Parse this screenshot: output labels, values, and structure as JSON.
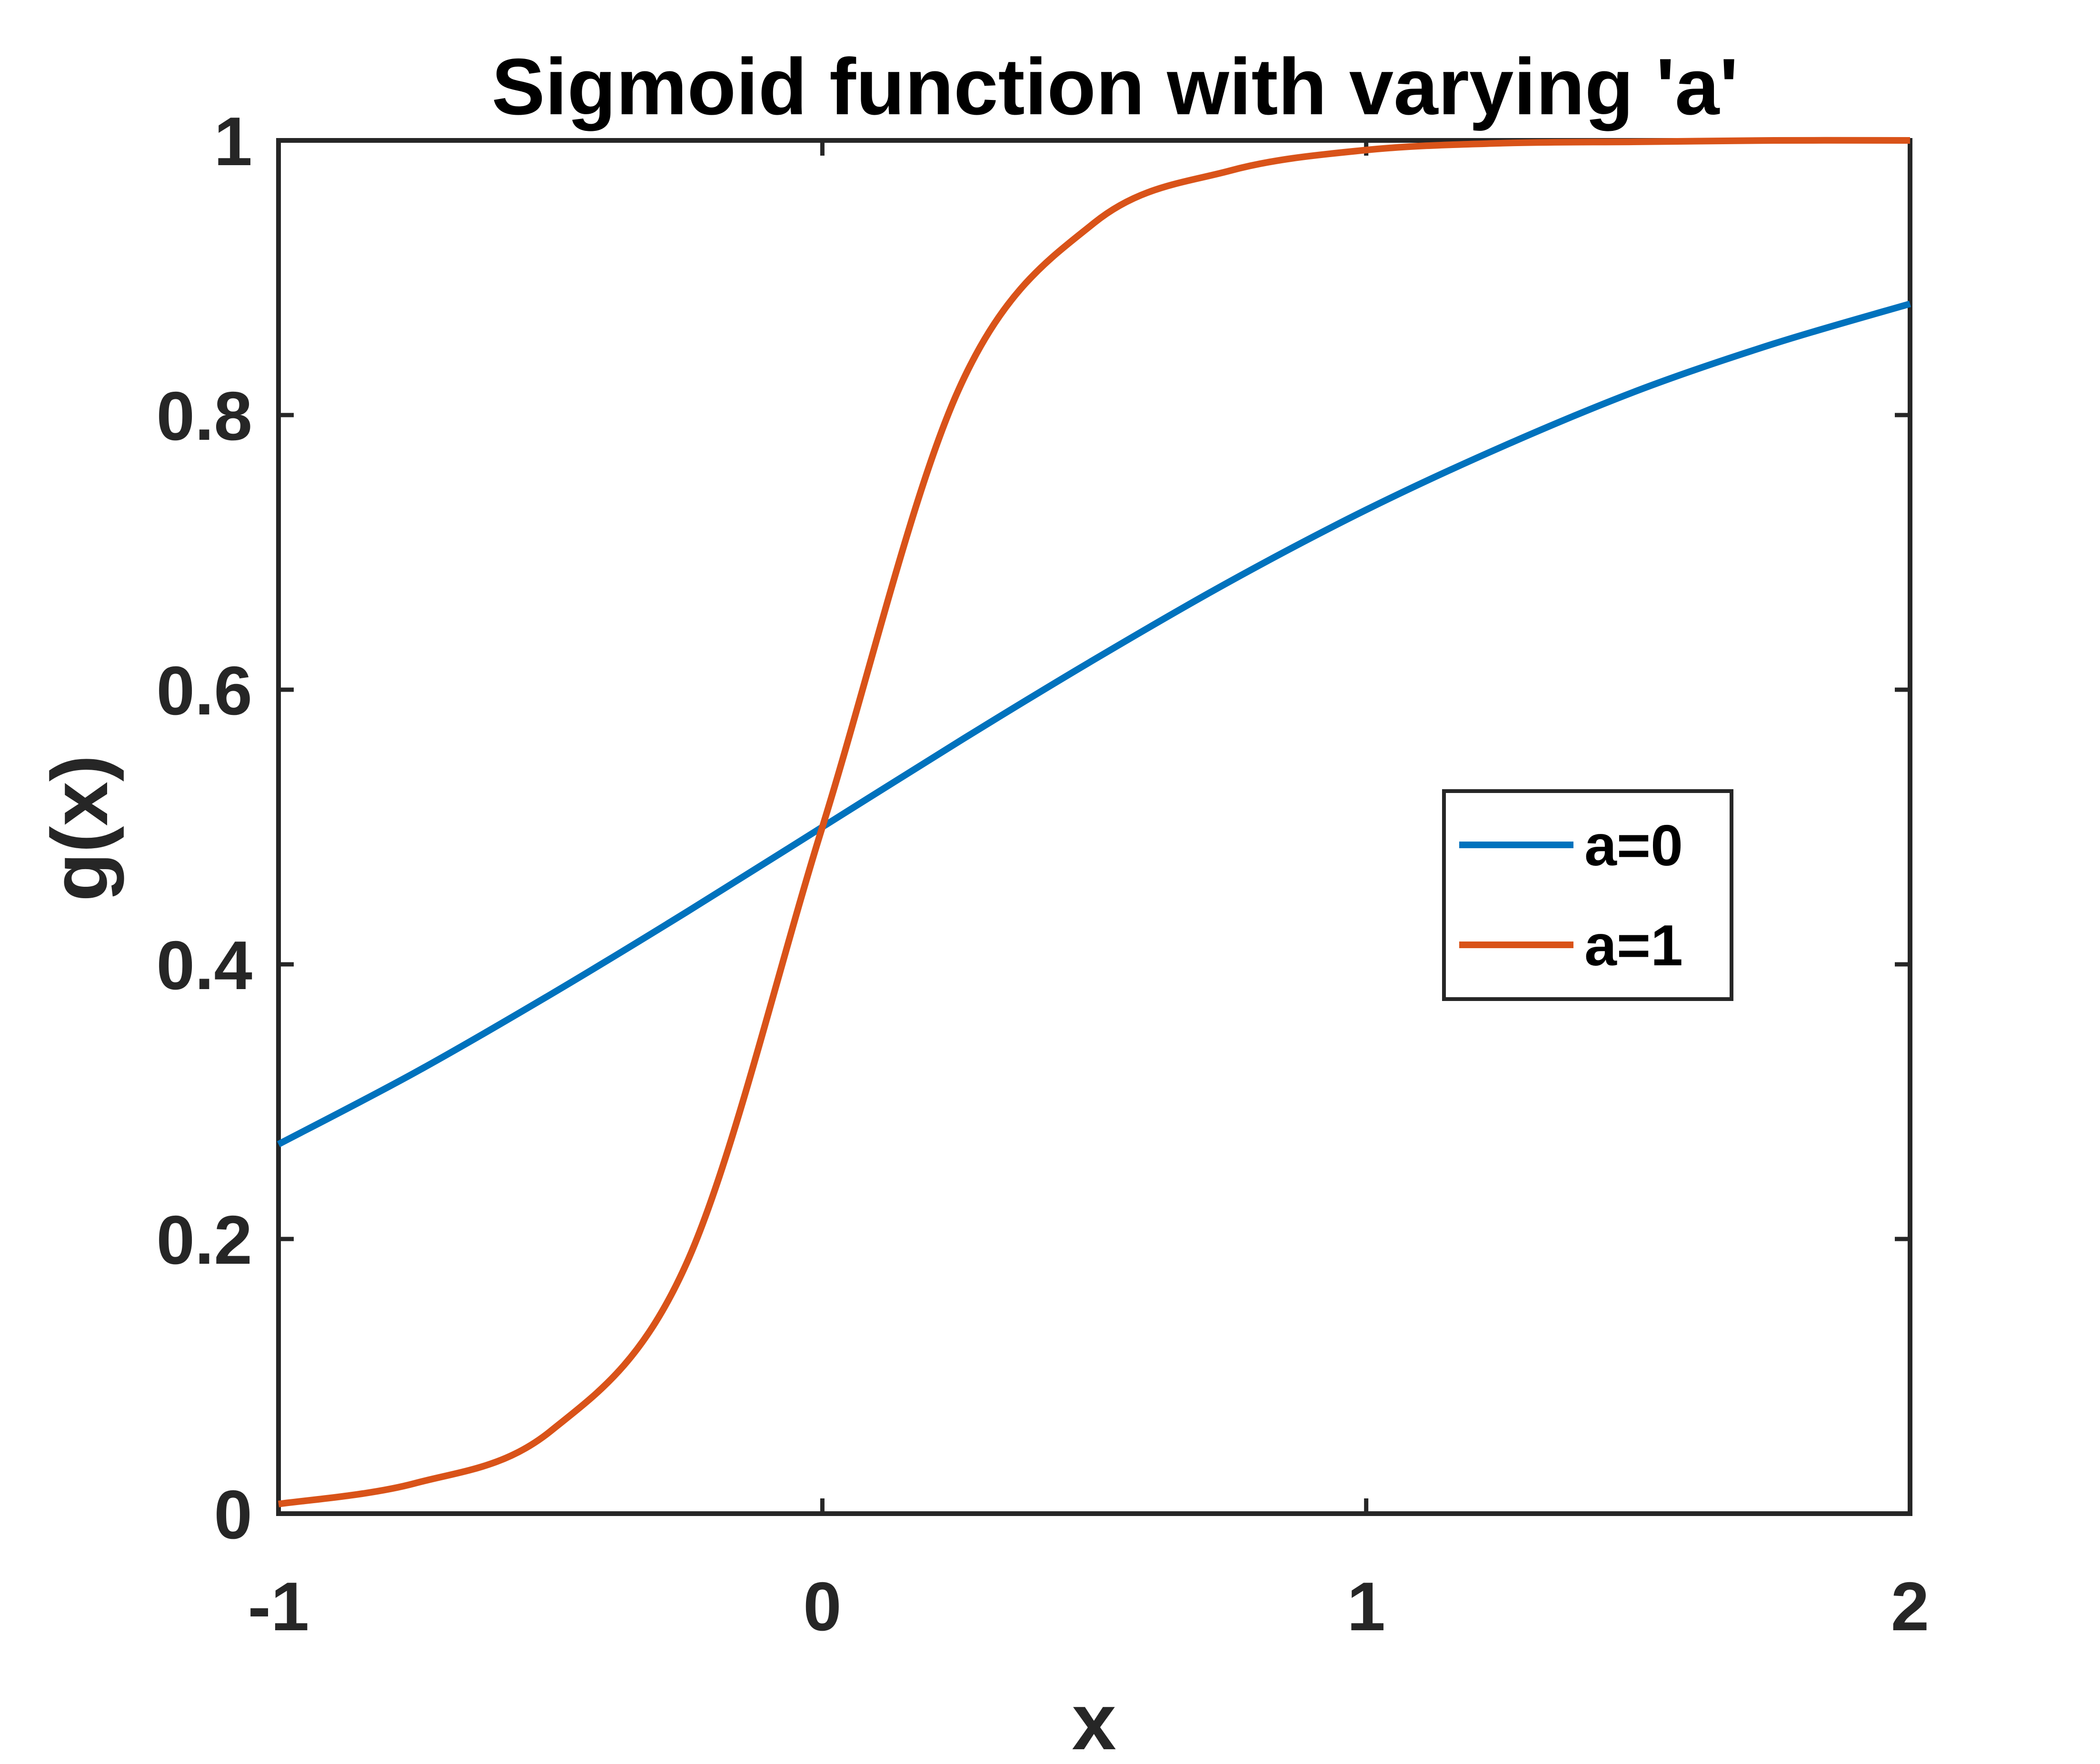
{
  "chart_data": {
    "type": "line",
    "title": "Sigmoid function with varying 'a'",
    "xlabel": "x",
    "ylabel": "g(x)",
    "xlim": [
      -1,
      2
    ],
    "ylim": [
      0,
      1
    ],
    "xticks": [
      -1,
      0,
      1,
      2
    ],
    "yticks": [
      0,
      0.2,
      0.4,
      0.6,
      0.8,
      1
    ],
    "xtick_labels": [
      "-1",
      "0",
      "1",
      "2"
    ],
    "ytick_labels": [
      "0",
      "0.2",
      "0.4",
      "0.6",
      "0.8",
      "1"
    ],
    "grid": false,
    "legend_position": "center-right",
    "x": [
      -1,
      -0.75,
      -0.5,
      -0.25,
      0,
      0.25,
      0.5,
      0.75,
      1,
      1.25,
      1.5,
      1.75,
      2
    ],
    "series": [
      {
        "name": "a=0",
        "color": "#0072BD",
        "values": [
          0.269,
          0.321,
          0.378,
          0.438,
          0.5,
          0.562,
          0.622,
          0.679,
          0.731,
          0.777,
          0.818,
          0.852,
          0.881
        ]
      },
      {
        "name": "a=1",
        "color": "#D95319",
        "values": [
          0.007,
          0.022,
          0.06,
          0.182,
          0.5,
          0.818,
          0.94,
          0.978,
          0.993,
          0.998,
          0.999,
          1.0,
          1.0
        ]
      }
    ],
    "legend": [
      "a=0",
      "a=1"
    ]
  }
}
